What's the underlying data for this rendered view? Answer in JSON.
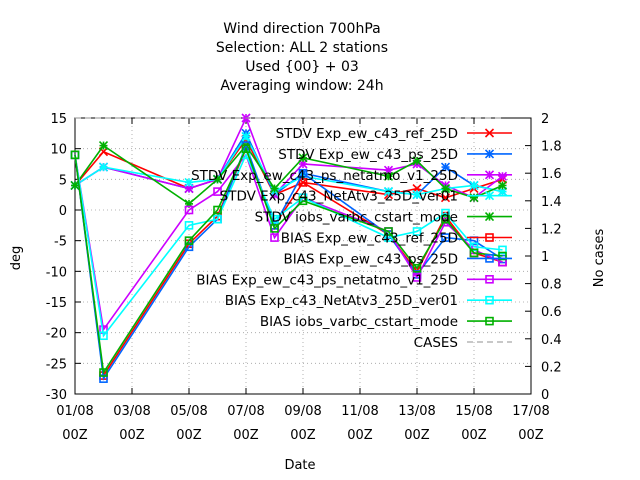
{
  "chart_data": {
    "type": "line",
    "title_lines": [
      "Wind direction 700hPa",
      "Selection: ALL      2 stations",
      "Used {00} + 03",
      "Averaging window: 24h"
    ],
    "xlabel": "Date",
    "ylabel": "deg",
    "y2label": "No cases",
    "x_ticks": [
      {
        "day": 1,
        "label1": "01/08",
        "label2": "00Z"
      },
      {
        "day": 3,
        "label1": "03/08",
        "label2": "00Z"
      },
      {
        "day": 5,
        "label1": "05/08",
        "label2": "00Z"
      },
      {
        "day": 7,
        "label1": "07/08",
        "label2": "00Z"
      },
      {
        "day": 9,
        "label1": "09/08",
        "label2": "00Z"
      },
      {
        "day": 11,
        "label1": "11/08",
        "label2": "00Z"
      },
      {
        "day": 13,
        "label1": "13/08",
        "label2": "00Z"
      },
      {
        "day": 15,
        "label1": "15/08",
        "label2": "00Z"
      },
      {
        "day": 17,
        "label1": "17/08",
        "label2": "00Z"
      }
    ],
    "xlim": [
      1,
      17
    ],
    "ylim": [
      -30,
      15
    ],
    "y_ticks": [
      15,
      10,
      5,
      0,
      -5,
      -10,
      -15,
      -20,
      -25,
      -30
    ],
    "y2lim": [
      0,
      2
    ],
    "y2_ticks": [
      "2",
      "1.8",
      "1.6",
      "1.4",
      "1.2",
      "1",
      "0.8",
      "0.6",
      "0.4",
      "0.2",
      "0"
    ],
    "grid": true,
    "legend_position": "top-right",
    "x": [
      1,
      2,
      5,
      6,
      7,
      8,
      9,
      12,
      13,
      14,
      15,
      16
    ],
    "series": [
      {
        "name": "STDV Exp_ew_c43_ref_25D",
        "color": "#ff0000",
        "marker": "x",
        "values": [
          4,
          9.5,
          3.5,
          5,
          11.5,
          2.5,
          4.5,
          2.5,
          3.5,
          2,
          3.5,
          5
        ]
      },
      {
        "name": "STDV Exp_ew_c43_ps_25D",
        "color": "#0066ff",
        "marker": "star",
        "values": [
          4,
          7,
          3.5,
          5,
          12.5,
          2.5,
          6,
          3,
          2.5,
          7,
          4,
          3
        ]
      },
      {
        "name": "STDV Exp_ew_c43_ps_netatmo_v1_25D",
        "color": "#cc00ff",
        "marker": "star",
        "values": [
          4,
          7,
          3.5,
          5,
          15,
          2.5,
          7.5,
          6.5,
          7.5,
          4,
          2,
          5.5
        ]
      },
      {
        "name": "STDV Exp_c43_NetAtv3_25D_ver01",
        "color": "#00ffff",
        "marker": "star",
        "values": [
          4,
          7,
          4.5,
          5,
          12,
          3,
          5.5,
          3,
          2.5,
          3.5,
          4,
          3
        ]
      },
      {
        "name": "STDV iobs_varbc_cstart_mode",
        "color": "#00b000",
        "marker": "star",
        "values": [
          4,
          10.5,
          1,
          5,
          10.5,
          3.5,
          8.5,
          5.5,
          8,
          3.5,
          2,
          4
        ]
      },
      {
        "name": "BIAS Exp_ew_c43_ref_25D",
        "color": "#ff0000",
        "marker": "square",
        "values": [
          9,
          -27,
          -5.5,
          -1,
          10,
          -2.5,
          4.5,
          -4,
          -10,
          -1,
          -7,
          -8.5
        ]
      },
      {
        "name": "BIAS Exp_ew_c43_ps_25D",
        "color": "#0066ff",
        "marker": "square",
        "values": [
          9,
          -27.5,
          -6,
          -1.5,
          10.5,
          -2.5,
          6,
          -4,
          -10.5,
          -4.5,
          -5,
          -8
        ]
      },
      {
        "name": "BIAS Exp_ew_c43_ps_netatmo_v1_25D",
        "color": "#cc00ff",
        "marker": "square",
        "values": [
          9,
          -19.5,
          0,
          3,
          9,
          -4.5,
          2,
          -3.5,
          -11,
          -2,
          -6.5,
          -8.5
        ]
      },
      {
        "name": "BIAS Exp_c43_NetAtv3_25D_ver01",
        "color": "#00ffff",
        "marker": "square",
        "values": [
          9,
          -20.5,
          -2.5,
          -1.5,
          9,
          -1.5,
          2,
          -4.5,
          -3.5,
          -0.5,
          -6,
          -6.5
        ]
      },
      {
        "name": "BIAS iobs_varbc_cstart_mode",
        "color": "#00b000",
        "marker": "square",
        "values": [
          9,
          -26.5,
          -5,
          0,
          10,
          -3,
          1.5,
          -3.5,
          -9.5,
          -1.5,
          -7,
          -7.5
        ]
      },
      {
        "name": "CASES",
        "color": "#909090",
        "marker": "none",
        "axis": "y2",
        "values": [
          2,
          2,
          2,
          2,
          2,
          2,
          2,
          2,
          2,
          2,
          2,
          2
        ]
      }
    ]
  }
}
